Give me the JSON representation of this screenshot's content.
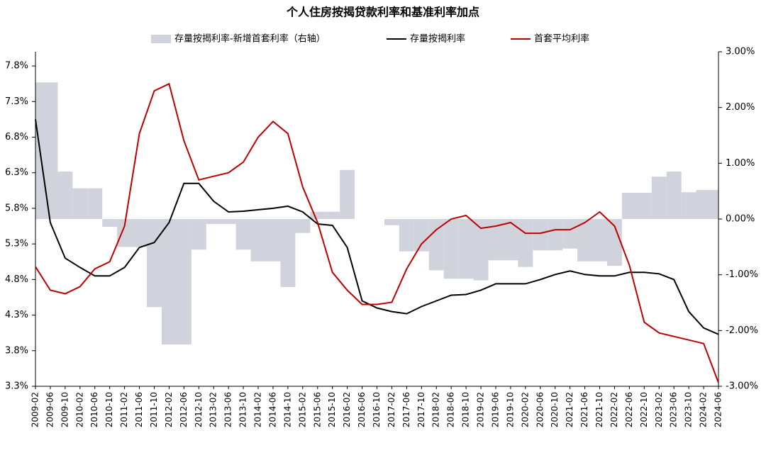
{
  "chart_data": {
    "type": "bar_line_combo",
    "title": "个人住房按揭贷款利率和基准利率加点",
    "categories": [
      "2009-02",
      "2009-06",
      "2009-10",
      "2010-02",
      "2010-06",
      "2010-10",
      "2011-02",
      "2011-06",
      "2011-10",
      "2012-02",
      "2012-06",
      "2012-10",
      "2013-02",
      "2013-06",
      "2013-10",
      "2014-02",
      "2014-06",
      "2014-10",
      "2015-02",
      "2015-06",
      "2015-10",
      "2016-02",
      "2016-06",
      "2016-10",
      "2017-02",
      "2017-06",
      "2017-10",
      "2018-02",
      "2018-06",
      "2018-10",
      "2019-02",
      "2019-06",
      "2019-10",
      "2020-02",
      "2020-06",
      "2020-10",
      "2021-02",
      "2021-06",
      "2021-10",
      "2022-02",
      "2022-06",
      "2022-10",
      "2023-02",
      "2023-06",
      "2023-10",
      "2024-02",
      "2024-06"
    ],
    "series": [
      {
        "name": "存量按揭利率-新增首套利率（右轴）",
        "type": "bar",
        "axis": "y2",
        "color": "#d0d2dc",
        "values": [
          2.45,
          2.45,
          0.85,
          0.55,
          0.55,
          -0.14,
          -0.5,
          -0.5,
          -1.58,
          -2.25,
          -2.25,
          -0.55,
          -0.09,
          -0.09,
          -0.55,
          -0.76,
          -0.76,
          -1.22,
          -0.25,
          0.13,
          0.13,
          0.88,
          0,
          0,
          -0.11,
          -0.58,
          -0.58,
          -0.92,
          -1.07,
          -1.07,
          -1.1,
          -0.74,
          -0.74,
          -0.86,
          -0.56,
          -0.56,
          -0.53,
          -0.76,
          -0.76,
          -0.84,
          0.47,
          0.47,
          0.76,
          0.85,
          0.48,
          0.52,
          0.52
        ]
      },
      {
        "name": "存量按揭利率",
        "type": "line",
        "color": "#000000",
        "values": [
          7.05,
          5.6,
          5.1,
          4.97,
          4.85,
          4.85,
          4.97,
          5.25,
          5.32,
          5.6,
          6.15,
          6.15,
          5.9,
          5.75,
          5.76,
          5.78,
          5.8,
          5.83,
          5.75,
          5.58,
          5.56,
          5.25,
          4.5,
          4.4,
          4.35,
          4.32,
          4.42,
          4.5,
          4.58,
          4.59,
          4.65,
          4.74,
          4.74,
          4.74,
          4.8,
          4.87,
          4.92,
          4.87,
          4.85,
          4.85,
          4.9,
          4.9,
          4.88,
          4.8,
          4.35,
          4.12,
          4.03
        ]
      },
      {
        "name": "首套平均利率",
        "type": "line",
        "color": "#c00000",
        "values": [
          4.98,
          4.65,
          4.6,
          4.7,
          4.95,
          5.05,
          5.55,
          6.85,
          7.45,
          7.55,
          6.75,
          6.2,
          6.25,
          6.3,
          6.45,
          6.8,
          7.02,
          6.85,
          6.1,
          5.6,
          4.9,
          4.65,
          4.45,
          4.45,
          4.48,
          4.95,
          5.3,
          5.5,
          5.65,
          5.7,
          5.52,
          5.55,
          5.6,
          5.45,
          5.45,
          5.5,
          5.5,
          5.6,
          5.75,
          5.55,
          5.0,
          4.2,
          4.05,
          4.0,
          3.95,
          3.9,
          3.35
        ]
      }
    ],
    "ylim": [
      3.3,
      8.0
    ],
    "yticks": [
      {
        "value": 3.3,
        "label": "3.3%"
      },
      {
        "value": 3.8,
        "label": "3.8%"
      },
      {
        "value": 4.3,
        "label": "4.3%"
      },
      {
        "value": 4.8,
        "label": "4.8%"
      },
      {
        "value": 5.3,
        "label": "5.3%"
      },
      {
        "value": 5.8,
        "label": "5.8%"
      },
      {
        "value": 6.3,
        "label": "6.3%"
      },
      {
        "value": 6.8,
        "label": "6.8%"
      },
      {
        "value": 7.3,
        "label": "7.3%"
      },
      {
        "value": 7.8,
        "label": "7.8%"
      }
    ],
    "y2lim": [
      -3,
      3
    ],
    "y2ticks": [
      {
        "value": -3,
        "label": "-3.00%"
      },
      {
        "value": -2,
        "label": "-2.00%"
      },
      {
        "value": -1,
        "label": "-1.00%"
      },
      {
        "value": 0,
        "label": "0.00%"
      },
      {
        "value": 1,
        "label": "1.00%"
      },
      {
        "value": 2,
        "label": "2.00%"
      },
      {
        "value": 3,
        "label": "3.00%"
      }
    ],
    "legend": "top"
  }
}
